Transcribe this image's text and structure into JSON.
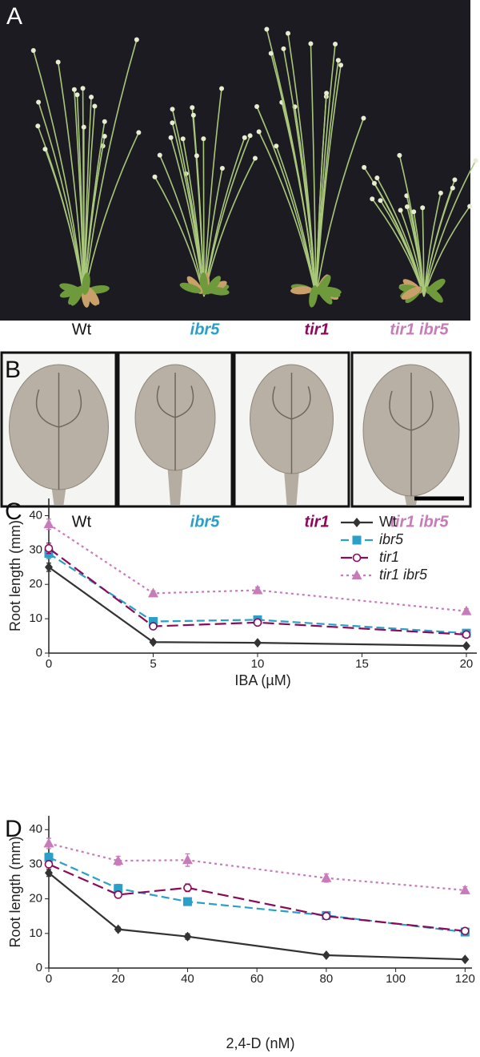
{
  "panels": {
    "A": {
      "label": "A"
    },
    "B": {
      "label": "B"
    },
    "genotypes": [
      {
        "label": "Wt",
        "color": "#111111",
        "italic": false
      },
      {
        "label": "ibr5",
        "color": "#2a9fc8",
        "italic": true
      },
      {
        "label": "tir1",
        "color": "#8b0a5a",
        "italic": true
      },
      {
        "label": "tir1 ibr5",
        "color": "#c77bb8",
        "italic": true
      }
    ]
  },
  "chart_data": [
    {
      "type": "line",
      "panel_label": "C",
      "xlabel": "IBA (µM)",
      "ylabel": "Root length (mm)",
      "x": [
        0,
        5,
        10,
        20
      ],
      "xlim": [
        0,
        20.5
      ],
      "xticks": [
        0,
        5,
        10,
        15,
        20
      ],
      "ylim": [
        0,
        45
      ],
      "yticks": [
        0,
        10,
        20,
        30,
        40
      ],
      "legend": "upper right",
      "series": [
        {
          "name": "Wt",
          "color": "#333333",
          "marker": "diamond",
          "dash": "solid",
          "italic": false,
          "values": [
            25,
            3.2,
            3,
            2.1
          ],
          "errors": [
            1.2,
            0.3,
            0.3,
            0.2
          ]
        },
        {
          "name": "ibr5",
          "color": "#2a9fc8",
          "marker": "square",
          "dash": "dashed",
          "italic": true,
          "values": [
            29,
            9.2,
            9.7,
            5.8
          ],
          "errors": [
            1.5,
            0.5,
            0.6,
            0.4
          ]
        },
        {
          "name": "tir1",
          "color": "#8b0a5a",
          "marker": "circle",
          "dash": "longdash",
          "italic": true,
          "values": [
            30.5,
            7.8,
            8.9,
            5.4
          ],
          "errors": [
            1.5,
            0.5,
            0.5,
            0.4
          ]
        },
        {
          "name": "tir1 ibr5",
          "color": "#c77bb8",
          "marker": "triangle",
          "dash": "dotted",
          "italic": true,
          "values": [
            37.5,
            17.4,
            18.3,
            12.2
          ],
          "errors": [
            1.5,
            0.7,
            0.9,
            0.7
          ]
        }
      ]
    },
    {
      "type": "line",
      "panel_label": "D",
      "xlabel": "2,4-D (nM)",
      "ylabel": "Root length (mm)",
      "x": [
        0,
        20,
        40,
        80,
        120
      ],
      "xlim": [
        0,
        122
      ],
      "xticks": [
        0,
        20,
        40,
        60,
        80,
        100,
        120
      ],
      "ylim": [
        0,
        44
      ],
      "yticks": [
        0,
        10,
        20,
        30,
        40
      ],
      "series": [
        {
          "name": "Wt",
          "color": "#333333",
          "marker": "diamond",
          "dash": "solid",
          "italic": false,
          "values": [
            27.5,
            11.2,
            9.1,
            3.7,
            2.5
          ],
          "errors": [
            1,
            0.6,
            0.8,
            0.3,
            0.2
          ]
        },
        {
          "name": "ibr5",
          "color": "#2a9fc8",
          "marker": "square",
          "dash": "dashed",
          "italic": true,
          "values": [
            32,
            23,
            19.2,
            15.2,
            10.4
          ],
          "errors": [
            1.2,
            1.2,
            0.7,
            0.6,
            0.6
          ]
        },
        {
          "name": "tir1",
          "color": "#8b0a5a",
          "marker": "circle",
          "dash": "longdash",
          "italic": true,
          "values": [
            30,
            21.2,
            23.2,
            15,
            10.7
          ],
          "errors": [
            1,
            0.9,
            1.1,
            0.6,
            0.5
          ]
        },
        {
          "name": "tir1 ibr5",
          "color": "#c77bb8",
          "marker": "triangle",
          "dash": "dotted",
          "italic": true,
          "values": [
            36,
            31,
            31.2,
            26,
            22.5
          ],
          "errors": [
            1.5,
            1.3,
            1.8,
            1.2,
            1
          ]
        }
      ]
    }
  ]
}
